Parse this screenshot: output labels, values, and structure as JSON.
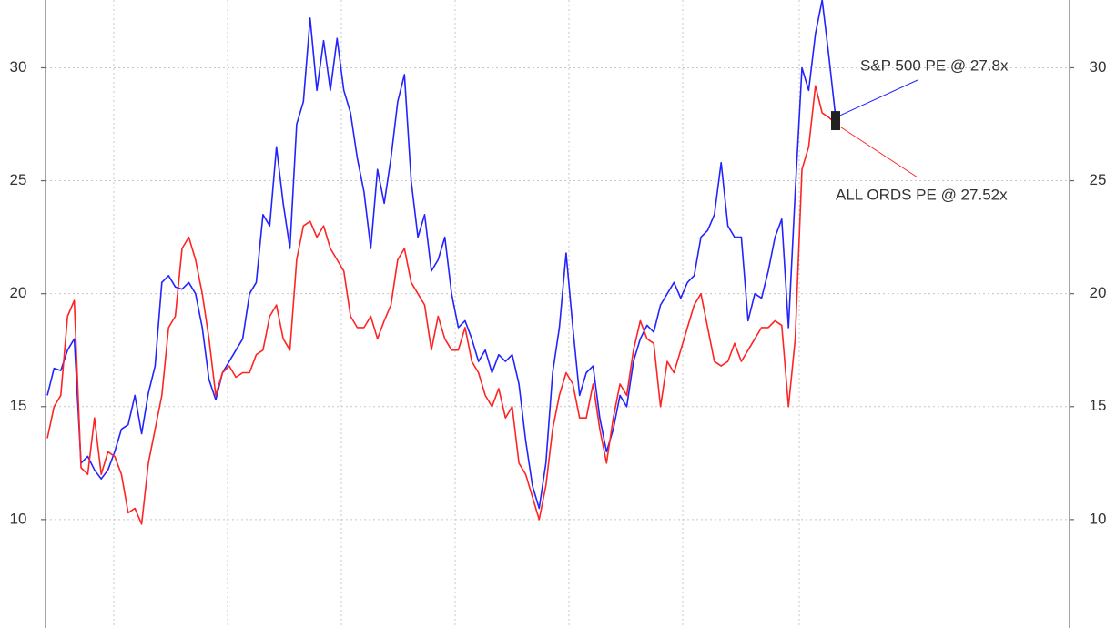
{
  "chart_data": {
    "type": "line",
    "ylim": [
      5.2,
      33
    ],
    "yticks": [
      10,
      15,
      20,
      25,
      30
    ],
    "y2lim": [
      5.2,
      33
    ],
    "y2ticks": [
      10,
      15,
      20,
      25,
      30
    ],
    "grid": true,
    "series": [
      {
        "color": "#2323ff",
        "values": [
          15.5,
          16.7,
          16.6,
          17.5,
          18.0,
          12.5,
          12.8,
          12.2,
          11.8,
          12.2,
          13.0,
          14.0,
          14.2,
          15.5,
          13.8,
          15.6,
          16.8,
          20.5,
          20.8,
          20.3,
          20.2,
          20.5,
          20.0,
          18.5,
          16.2,
          15.3,
          16.5,
          17.0,
          17.5,
          18.0,
          20.0,
          20.5,
          23.5,
          23.0,
          26.5,
          24.0,
          22.0,
          27.5,
          28.5,
          32.2,
          29.0,
          31.2,
          29.0,
          31.3,
          29.0,
          28.0,
          26.0,
          24.5,
          22.0,
          25.5,
          24.0,
          26.0,
          28.5,
          29.7,
          25.0,
          22.5,
          23.5,
          21.0,
          21.5,
          22.5,
          20.0,
          18.5,
          18.8,
          18.0,
          17.0,
          17.5,
          16.5,
          17.3,
          17.0,
          17.3,
          16.0,
          13.5,
          11.5,
          10.5,
          12.5,
          16.5,
          18.5,
          21.8,
          18.5,
          15.5,
          16.5,
          16.8,
          14.5,
          13.0,
          14.0,
          15.5,
          15.0,
          17.0,
          18.0,
          18.6,
          18.3,
          19.5,
          20.0,
          20.5,
          19.8,
          20.5,
          20.8,
          22.5,
          22.8,
          23.5,
          25.8,
          23.0,
          22.5,
          22.5,
          18.8,
          20.0,
          19.8,
          21.0,
          22.5,
          23.3,
          18.5,
          24.5,
          30.0,
          29.0,
          31.5,
          33.0,
          30.5,
          27.8
        ]
      },
      {
        "color": "#ff2323",
        "values": [
          13.6,
          15.0,
          15.5,
          19.0,
          19.7,
          12.3,
          12.0,
          14.5,
          12.0,
          13.0,
          12.8,
          12.0,
          10.3,
          10.5,
          9.8,
          12.5,
          14.0,
          15.5,
          18.5,
          19.0,
          22.0,
          22.5,
          21.5,
          20.0,
          18.0,
          15.5,
          16.5,
          16.8,
          16.3,
          16.5,
          16.5,
          17.3,
          17.5,
          19.0,
          19.5,
          18.0,
          17.5,
          21.5,
          23.0,
          23.2,
          22.5,
          23.0,
          22.0,
          21.5,
          21.0,
          19.0,
          18.5,
          18.5,
          19.0,
          18.0,
          18.8,
          19.5,
          21.5,
          22.0,
          20.5,
          20.0,
          19.5,
          17.5,
          19.0,
          18.0,
          17.5,
          17.5,
          18.5,
          17.0,
          16.5,
          15.5,
          15.0,
          15.8,
          14.5,
          15.0,
          12.5,
          12.0,
          11.0,
          10.0,
          11.5,
          14.0,
          15.5,
          16.5,
          16.0,
          14.5,
          14.5,
          16.0,
          14.0,
          12.5,
          14.5,
          16.0,
          15.5,
          17.5,
          18.8,
          18.0,
          17.8,
          15.0,
          17.0,
          16.5,
          17.5,
          18.5,
          19.5,
          20.0,
          18.5,
          17.0,
          16.8,
          17.0,
          17.8,
          17.0,
          17.5,
          18.0,
          18.5,
          18.5,
          18.8,
          18.6,
          15.0,
          18.0,
          25.5,
          26.5,
          29.2,
          28.0,
          27.8,
          27.52
        ]
      }
    ],
    "annotations": [
      "S&P 500 PE @ 27.8x",
      "ALL ORDS PE @ 27.52x"
    ]
  }
}
